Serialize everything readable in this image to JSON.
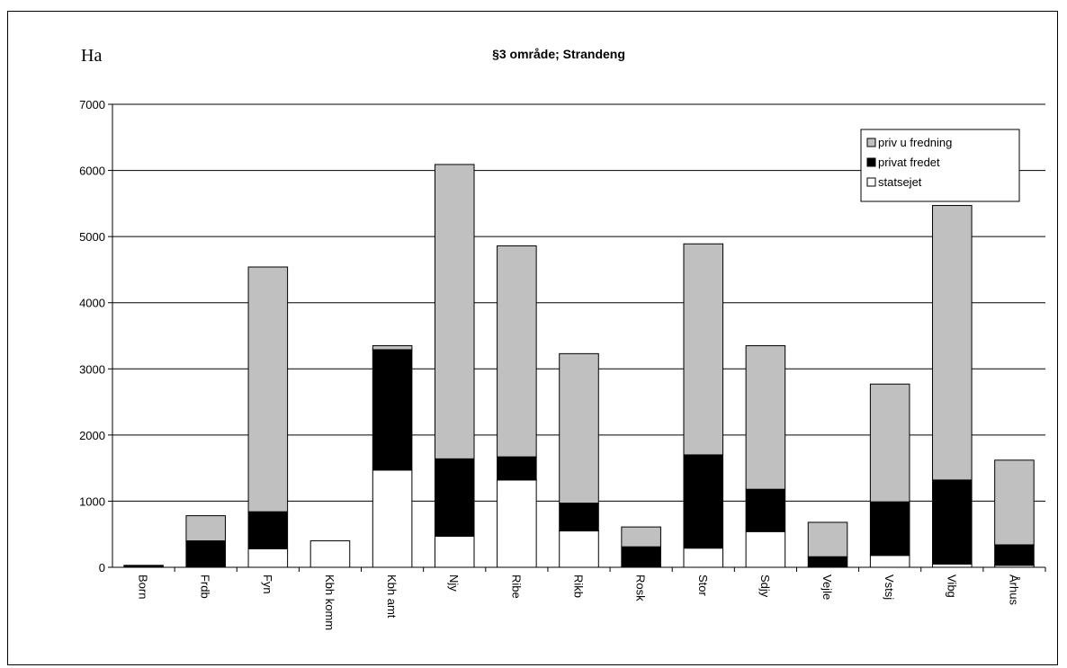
{
  "chart_data": {
    "type": "bar",
    "stacked": true,
    "title": "§3 område; Strandeng",
    "unit_label": "Ha",
    "xlabel": "",
    "ylabel": "",
    "ylim": [
      0,
      7000
    ],
    "yticks": [
      "0",
      "1000",
      "2000",
      "3000",
      "4000",
      "5000",
      "6000",
      "7000"
    ],
    "grid": true,
    "legend_position": "top-right",
    "categories": [
      "Born",
      "Frdb",
      "Fyn",
      "Kbh komm",
      "Kbh amt",
      "Njy",
      "Ribe",
      "Rikb",
      "Rosk",
      "Stor",
      "Sdjy",
      "Vejle",
      "Vstsj",
      "Vibg",
      "Århus"
    ],
    "series": [
      {
        "name": "statsejet",
        "color": "#ffffff",
        "values": [
          0,
          0,
          280,
          400,
          1470,
          470,
          1320,
          550,
          0,
          290,
          540,
          0,
          180,
          50,
          30
        ]
      },
      {
        "name": "privat fredet",
        "color": "#000000",
        "values": [
          30,
          400,
          560,
          0,
          1820,
          1170,
          350,
          420,
          310,
          1410,
          640,
          160,
          810,
          1270,
          310
        ]
      },
      {
        "name": "priv u fredning",
        "color": "#c0c0c0",
        "values": [
          0,
          380,
          3700,
          0,
          60,
          4450,
          3190,
          2260,
          300,
          3190,
          2170,
          520,
          1780,
          4150,
          1280
        ]
      }
    ]
  }
}
